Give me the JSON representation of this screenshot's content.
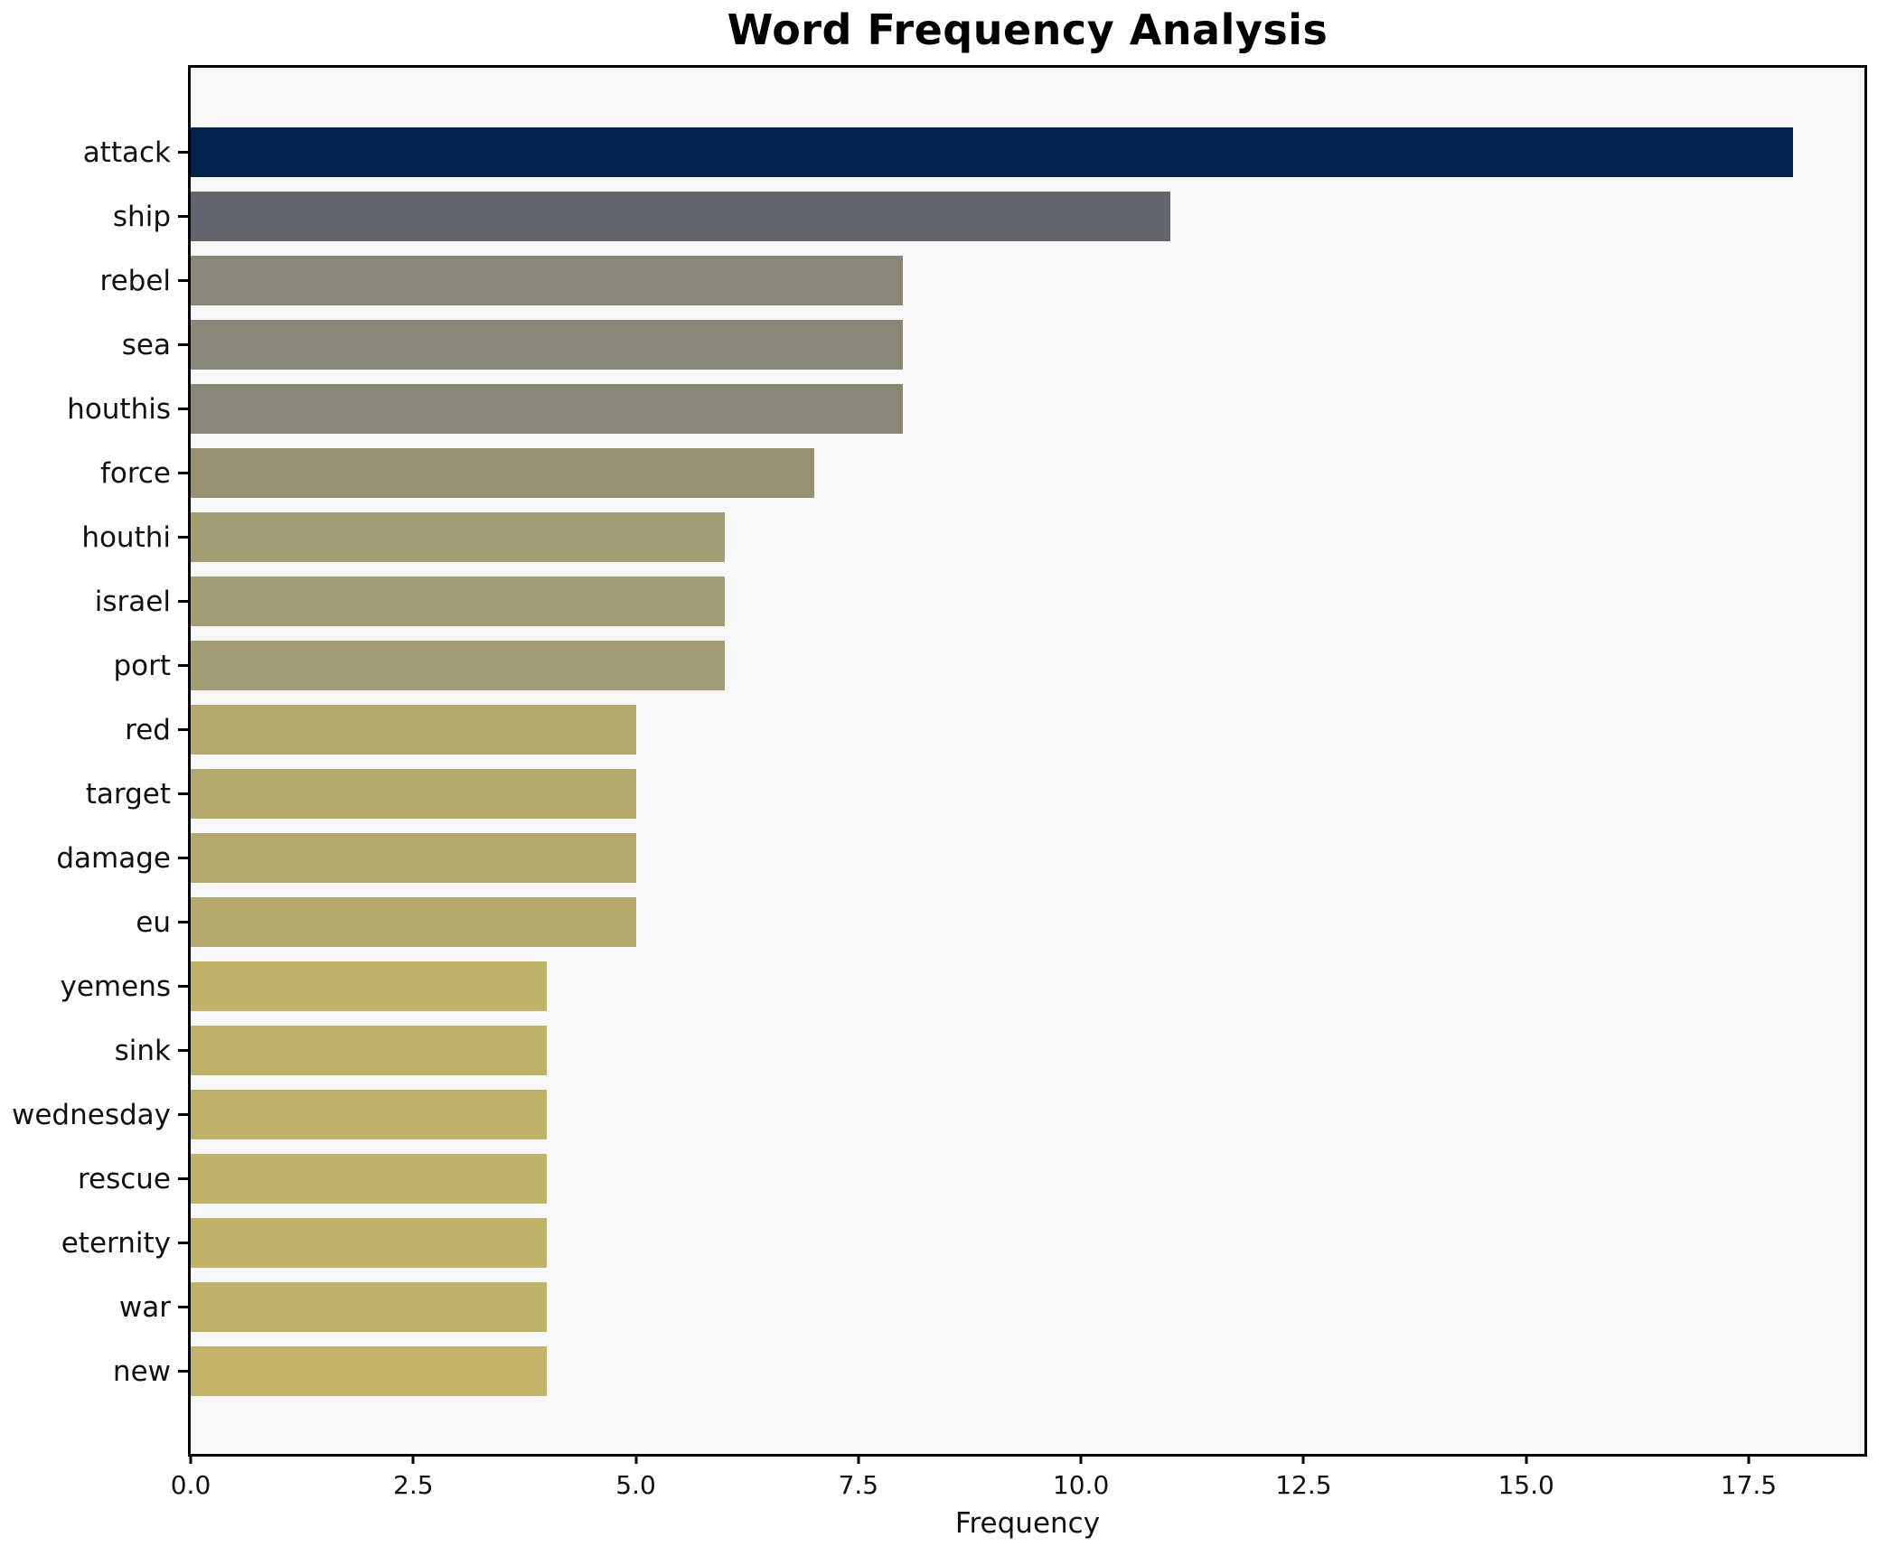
{
  "chart_data": {
    "type": "bar",
    "orientation": "horizontal",
    "title": "Word Frequency Analysis",
    "xlabel": "Frequency",
    "ylabel": "",
    "xlim": [
      0,
      18.8
    ],
    "x_tick_labels": [
      "0.0",
      "2.5",
      "5.0",
      "7.5",
      "10.0",
      "12.5",
      "15.0",
      "17.5"
    ],
    "x_tick_values": [
      0,
      2.5,
      5,
      7.5,
      10,
      12.5,
      15,
      17.5
    ],
    "grid": false,
    "legend": "none",
    "plot_background": "#f7f7f7",
    "figure_background": "#ffffff",
    "axis_color": "#000000",
    "categories": [
      "attack",
      "ship",
      "rebel",
      "sea",
      "houthis",
      "force",
      "houthi",
      "israel",
      "port",
      "red",
      "target",
      "damage",
      "eu",
      "yemens",
      "sink",
      "wednesday",
      "rescue",
      "eternity",
      "war",
      "new"
    ],
    "values": [
      18,
      11,
      8,
      8,
      8,
      7,
      6,
      6,
      6,
      5,
      5,
      5,
      5,
      4,
      4,
      4,
      4,
      4,
      4,
      4
    ],
    "bar_colors": [
      "#01244F",
      "#62656E",
      "#8A8777",
      "#8A8777",
      "#898675",
      "#969173",
      "#A49C72",
      "#A49C72",
      "#A49C72",
      "#B3A96E",
      "#B3A96E",
      "#B3A96E",
      "#B3A96E",
      "#C1B269",
      "#C1B269",
      "#C1B269",
      "#C1B269",
      "#C1B269",
      "#C1B269",
      "#C2B369"
    ]
  }
}
